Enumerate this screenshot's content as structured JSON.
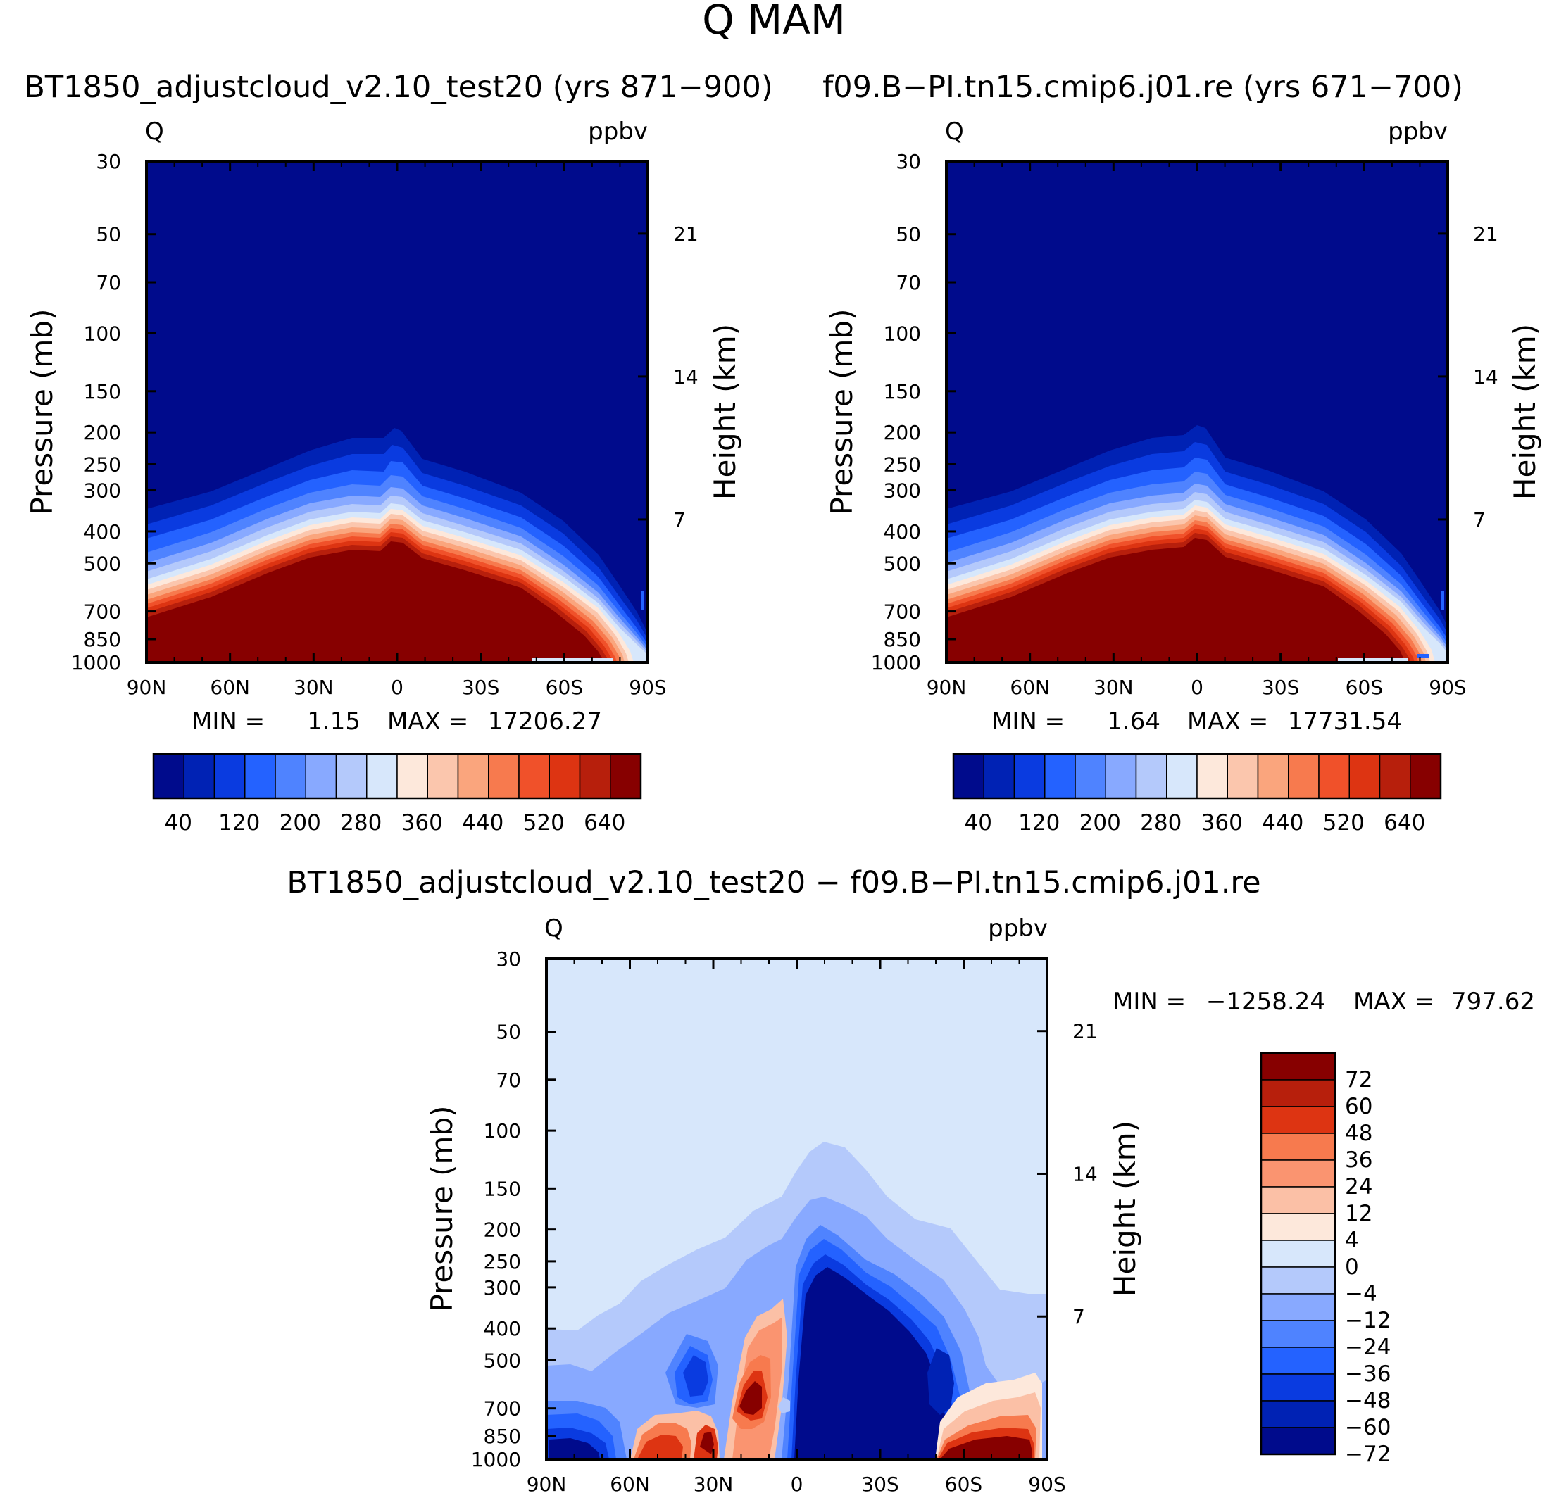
{
  "title": "Q  MAM",
  "chart_data": [
    {
      "type": "contour",
      "panel_title": "BT1850_adjustcloud_v2.10_test20 (yrs 871−900)",
      "variable": "Q",
      "units": "ppbv",
      "ylabel": "Pressure (mb)",
      "ylabel_right": "Height (km)",
      "x_ticks": [
        "90N",
        "60N",
        "30N",
        "0",
        "30S",
        "60S",
        "90S"
      ],
      "y_ticks": [
        "30",
        "50",
        "70",
        "100",
        "150",
        "200",
        "250",
        "300",
        "400",
        "500",
        "700",
        "850",
        "1000"
      ],
      "y_right_ticks": [
        "21",
        "14",
        "7"
      ],
      "min_label": "MIN =",
      "min_value": "1.15",
      "max_label": "MAX =",
      "max_value": "17206.27",
      "colorbar_labels": [
        "40",
        "120",
        "200",
        "280",
        "360",
        "440",
        "520",
        "640"
      ],
      "colors": [
        "#000b8c",
        "#0022b4",
        "#0a3be0",
        "#2462ff",
        "#4f83ff",
        "#88a9ff",
        "#b4c9fb",
        "#d7e7fb",
        "#fde8db",
        "#fbc6ad",
        "#faa57d",
        "#f77a4e",
        "#f0512a",
        "#dd3412",
        "#b71f0c",
        "#870000"
      ]
    },
    {
      "type": "contour",
      "panel_title": "f09.B−PI.tn15.cmip6.j01.re (yrs 671−700)",
      "variable": "Q",
      "units": "ppbv",
      "ylabel": "Pressure (mb)",
      "ylabel_right": "Height (km)",
      "x_ticks": [
        "90N",
        "60N",
        "30N",
        "0",
        "30S",
        "60S",
        "90S"
      ],
      "y_ticks": [
        "30",
        "50",
        "70",
        "100",
        "150",
        "200",
        "250",
        "300",
        "400",
        "500",
        "700",
        "850",
        "1000"
      ],
      "y_right_ticks": [
        "21",
        "14",
        "7"
      ],
      "min_label": "MIN =",
      "min_value": "1.64",
      "max_label": "MAX =",
      "max_value": "17731.54",
      "colorbar_labels": [
        "40",
        "120",
        "200",
        "280",
        "360",
        "440",
        "520",
        "640"
      ]
    },
    {
      "type": "contour",
      "panel_title": "BT1850_adjustcloud_v2.10_test20 − f09.B−PI.tn15.cmip6.j01.re",
      "variable": "Q",
      "units": "ppbv",
      "ylabel": "Pressure (mb)",
      "ylabel_right": "Height (km)",
      "x_ticks": [
        "90N",
        "60N",
        "30N",
        "0",
        "30S",
        "60S",
        "90S"
      ],
      "y_ticks": [
        "30",
        "50",
        "70",
        "100",
        "150",
        "200",
        "250",
        "300",
        "400",
        "500",
        "700",
        "850",
        "1000"
      ],
      "y_right_ticks": [
        "21",
        "14",
        "7"
      ],
      "min_label": "MIN =",
      "min_value": "−1258.24",
      "max_label": "MAX =",
      "max_value": "797.62",
      "colorbar_labels": [
        "72",
        "60",
        "48",
        "36",
        "24",
        "12",
        "4",
        "0",
        "−4",
        "−12",
        "−24",
        "−36",
        "−48",
        "−60",
        "−72"
      ],
      "colors": [
        "#870000",
        "#b71f0c",
        "#dd3412",
        "#f77a4e",
        "#fa9470",
        "#fbc0a6",
        "#fde8db",
        "#d7e7fb",
        "#b4c9fb",
        "#88a9ff",
        "#4f83ff",
        "#2462ff",
        "#0a3be0",
        "#0022b4",
        "#000b8c"
      ]
    }
  ]
}
